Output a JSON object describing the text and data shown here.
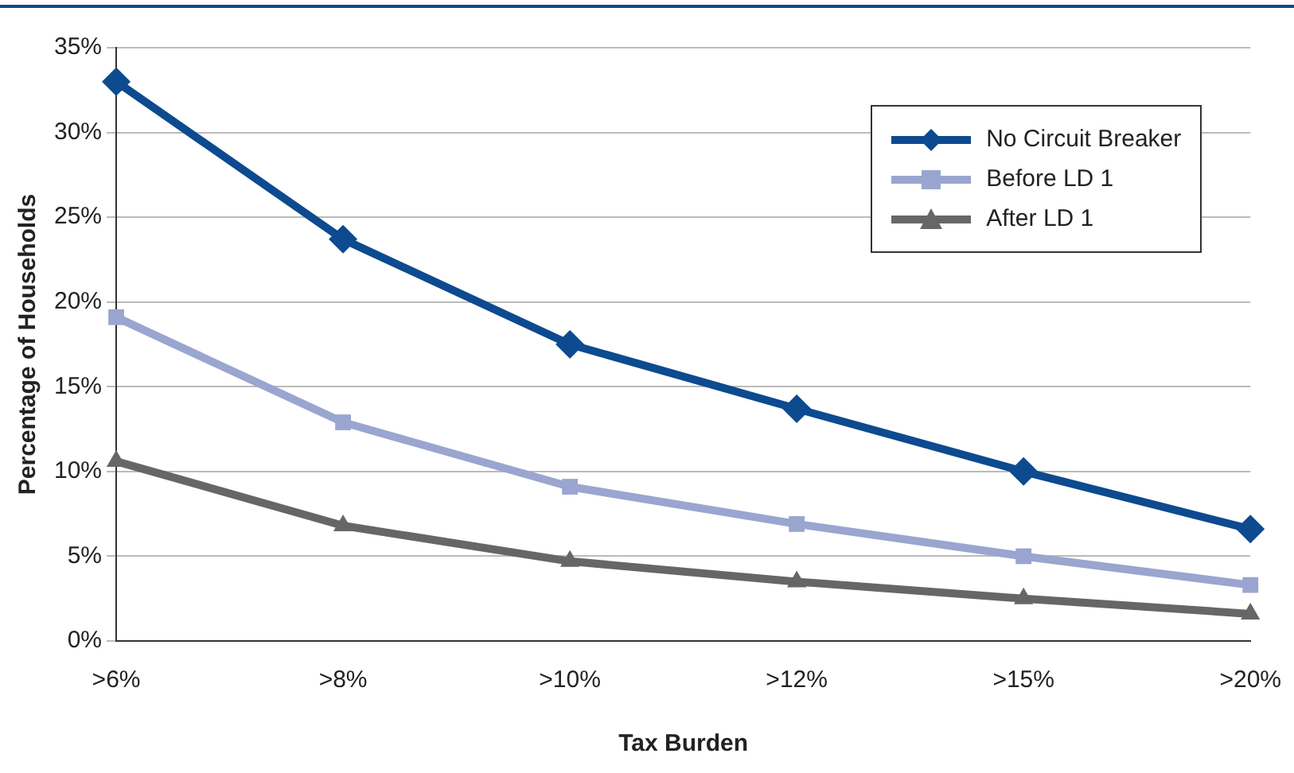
{
  "chart_data": {
    "type": "line",
    "xlabel": "Tax Burden",
    "ylabel": "Percentage of Households",
    "categories": [
      ">6%",
      ">8%",
      ">10%",
      ">12%",
      ">15%",
      ">20%"
    ],
    "series": [
      {
        "name": "No Circuit Breaker",
        "color": "#0d4a8f",
        "marker": "diamond",
        "values": [
          33.0,
          23.7,
          17.5,
          13.7,
          10.0,
          6.6
        ]
      },
      {
        "name": "Before LD 1",
        "color": "#9aa5d0",
        "marker": "square",
        "values": [
          19.1,
          12.9,
          9.1,
          6.9,
          5.0,
          3.3
        ]
      },
      {
        "name": "After LD 1",
        "color": "#666666",
        "marker": "triangle",
        "values": [
          10.6,
          6.8,
          4.7,
          3.5,
          2.5,
          1.6
        ]
      }
    ],
    "ylim": [
      0,
      35
    ],
    "yticks": [
      {
        "value": 0,
        "label": "0%"
      },
      {
        "value": 5,
        "label": "5%"
      },
      {
        "value": 10,
        "label": "10%"
      },
      {
        "value": 15,
        "label": "15%"
      },
      {
        "value": 20,
        "label": "20%"
      },
      {
        "value": 25,
        "label": "25%"
      },
      {
        "value": 30,
        "label": "30%"
      },
      {
        "value": 35,
        "label": "35%"
      }
    ],
    "grid": "y",
    "legend": "top right"
  }
}
